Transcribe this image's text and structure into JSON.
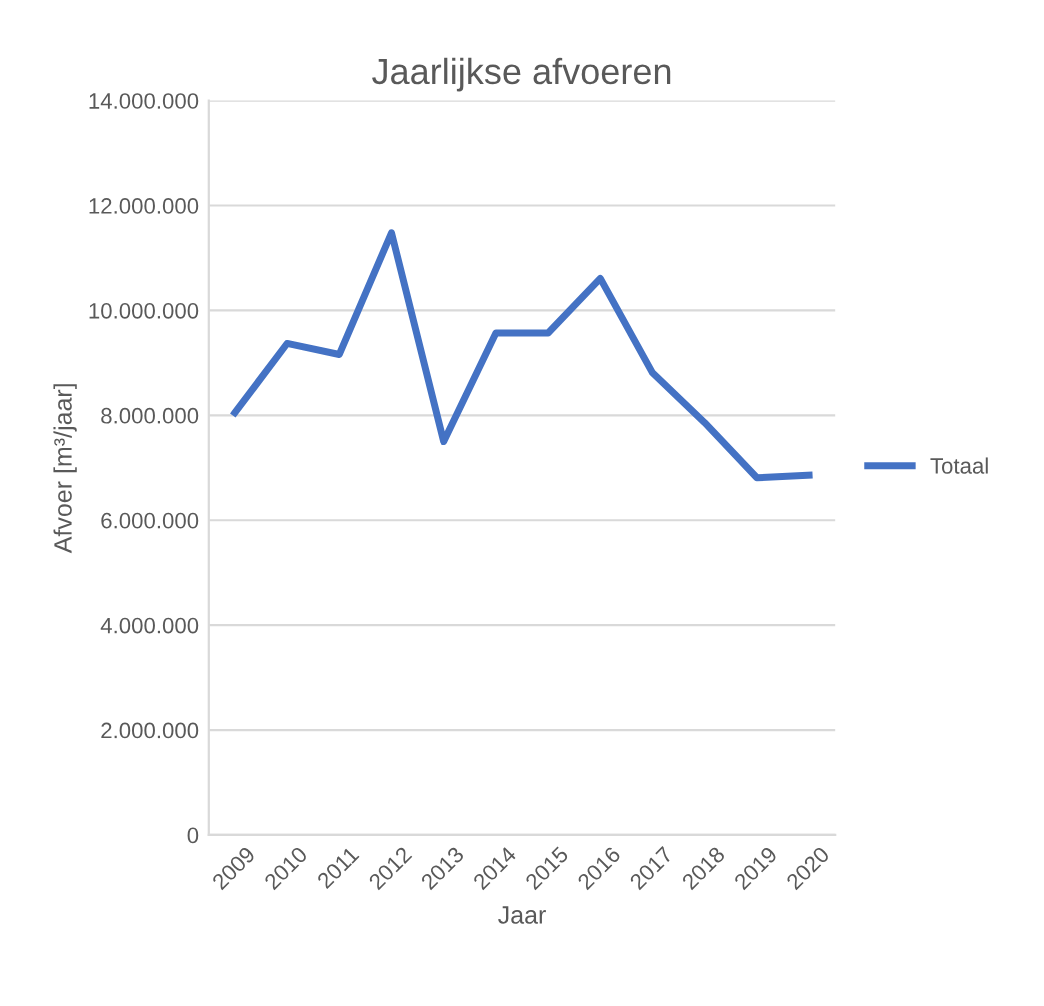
{
  "chart_data": {
    "type": "line",
    "title": "Jaarlijkse afvoeren",
    "xlabel": "Jaar",
    "ylabel": "Afvoer [m³/jaar]",
    "categories": [
      "2009",
      "2010",
      "2011",
      "2012",
      "2013",
      "2014",
      "2015",
      "2016",
      "2017",
      "2018",
      "2019",
      "2020"
    ],
    "series": [
      {
        "name": "Totaal",
        "color": "#4472c4",
        "values": [
          8050000,
          9370000,
          9160000,
          11480000,
          7500000,
          9570000,
          9570000,
          10610000,
          8810000,
          7860000,
          6810000,
          6860000
        ]
      }
    ],
    "ylim": [
      0,
      14000000
    ],
    "yticks": [
      {
        "value": 0,
        "label": "0"
      },
      {
        "value": 2000000,
        "label": "2.000.000"
      },
      {
        "value": 4000000,
        "label": "4.000.000"
      },
      {
        "value": 6000000,
        "label": "6.000.000"
      },
      {
        "value": 8000000,
        "label": "8.000.000"
      },
      {
        "value": 10000000,
        "label": "10.000.000"
      },
      {
        "value": 12000000,
        "label": "12.000.000"
      },
      {
        "value": 14000000,
        "label": "14.000.000"
      }
    ],
    "grid": "y",
    "legend": "right",
    "marker": "none",
    "line_style": "solid"
  }
}
